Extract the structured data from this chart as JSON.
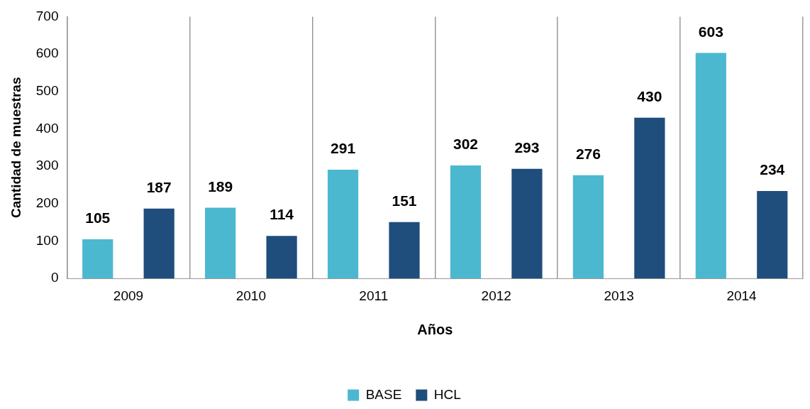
{
  "chart_data": {
    "type": "bar",
    "xlabel": "Años",
    "ylabel": "Cantidad de muestras",
    "categories": [
      "2009",
      "2010",
      "2011",
      "2012",
      "2013",
      "2014"
    ],
    "series": [
      {
        "name": "BASE",
        "color": "#4cb8d0",
        "values": [
          105,
          189,
          291,
          302,
          276,
          603
        ]
      },
      {
        "name": "HCL",
        "color": "#1f4e7d",
        "values": [
          187,
          114,
          151,
          293,
          430,
          234
        ]
      }
    ],
    "ylim": [
      0,
      700
    ],
    "yticks": [
      0,
      100,
      200,
      300,
      400,
      500,
      600,
      700
    ],
    "grid": "x",
    "legend": "bottom",
    "data_labels": true
  }
}
